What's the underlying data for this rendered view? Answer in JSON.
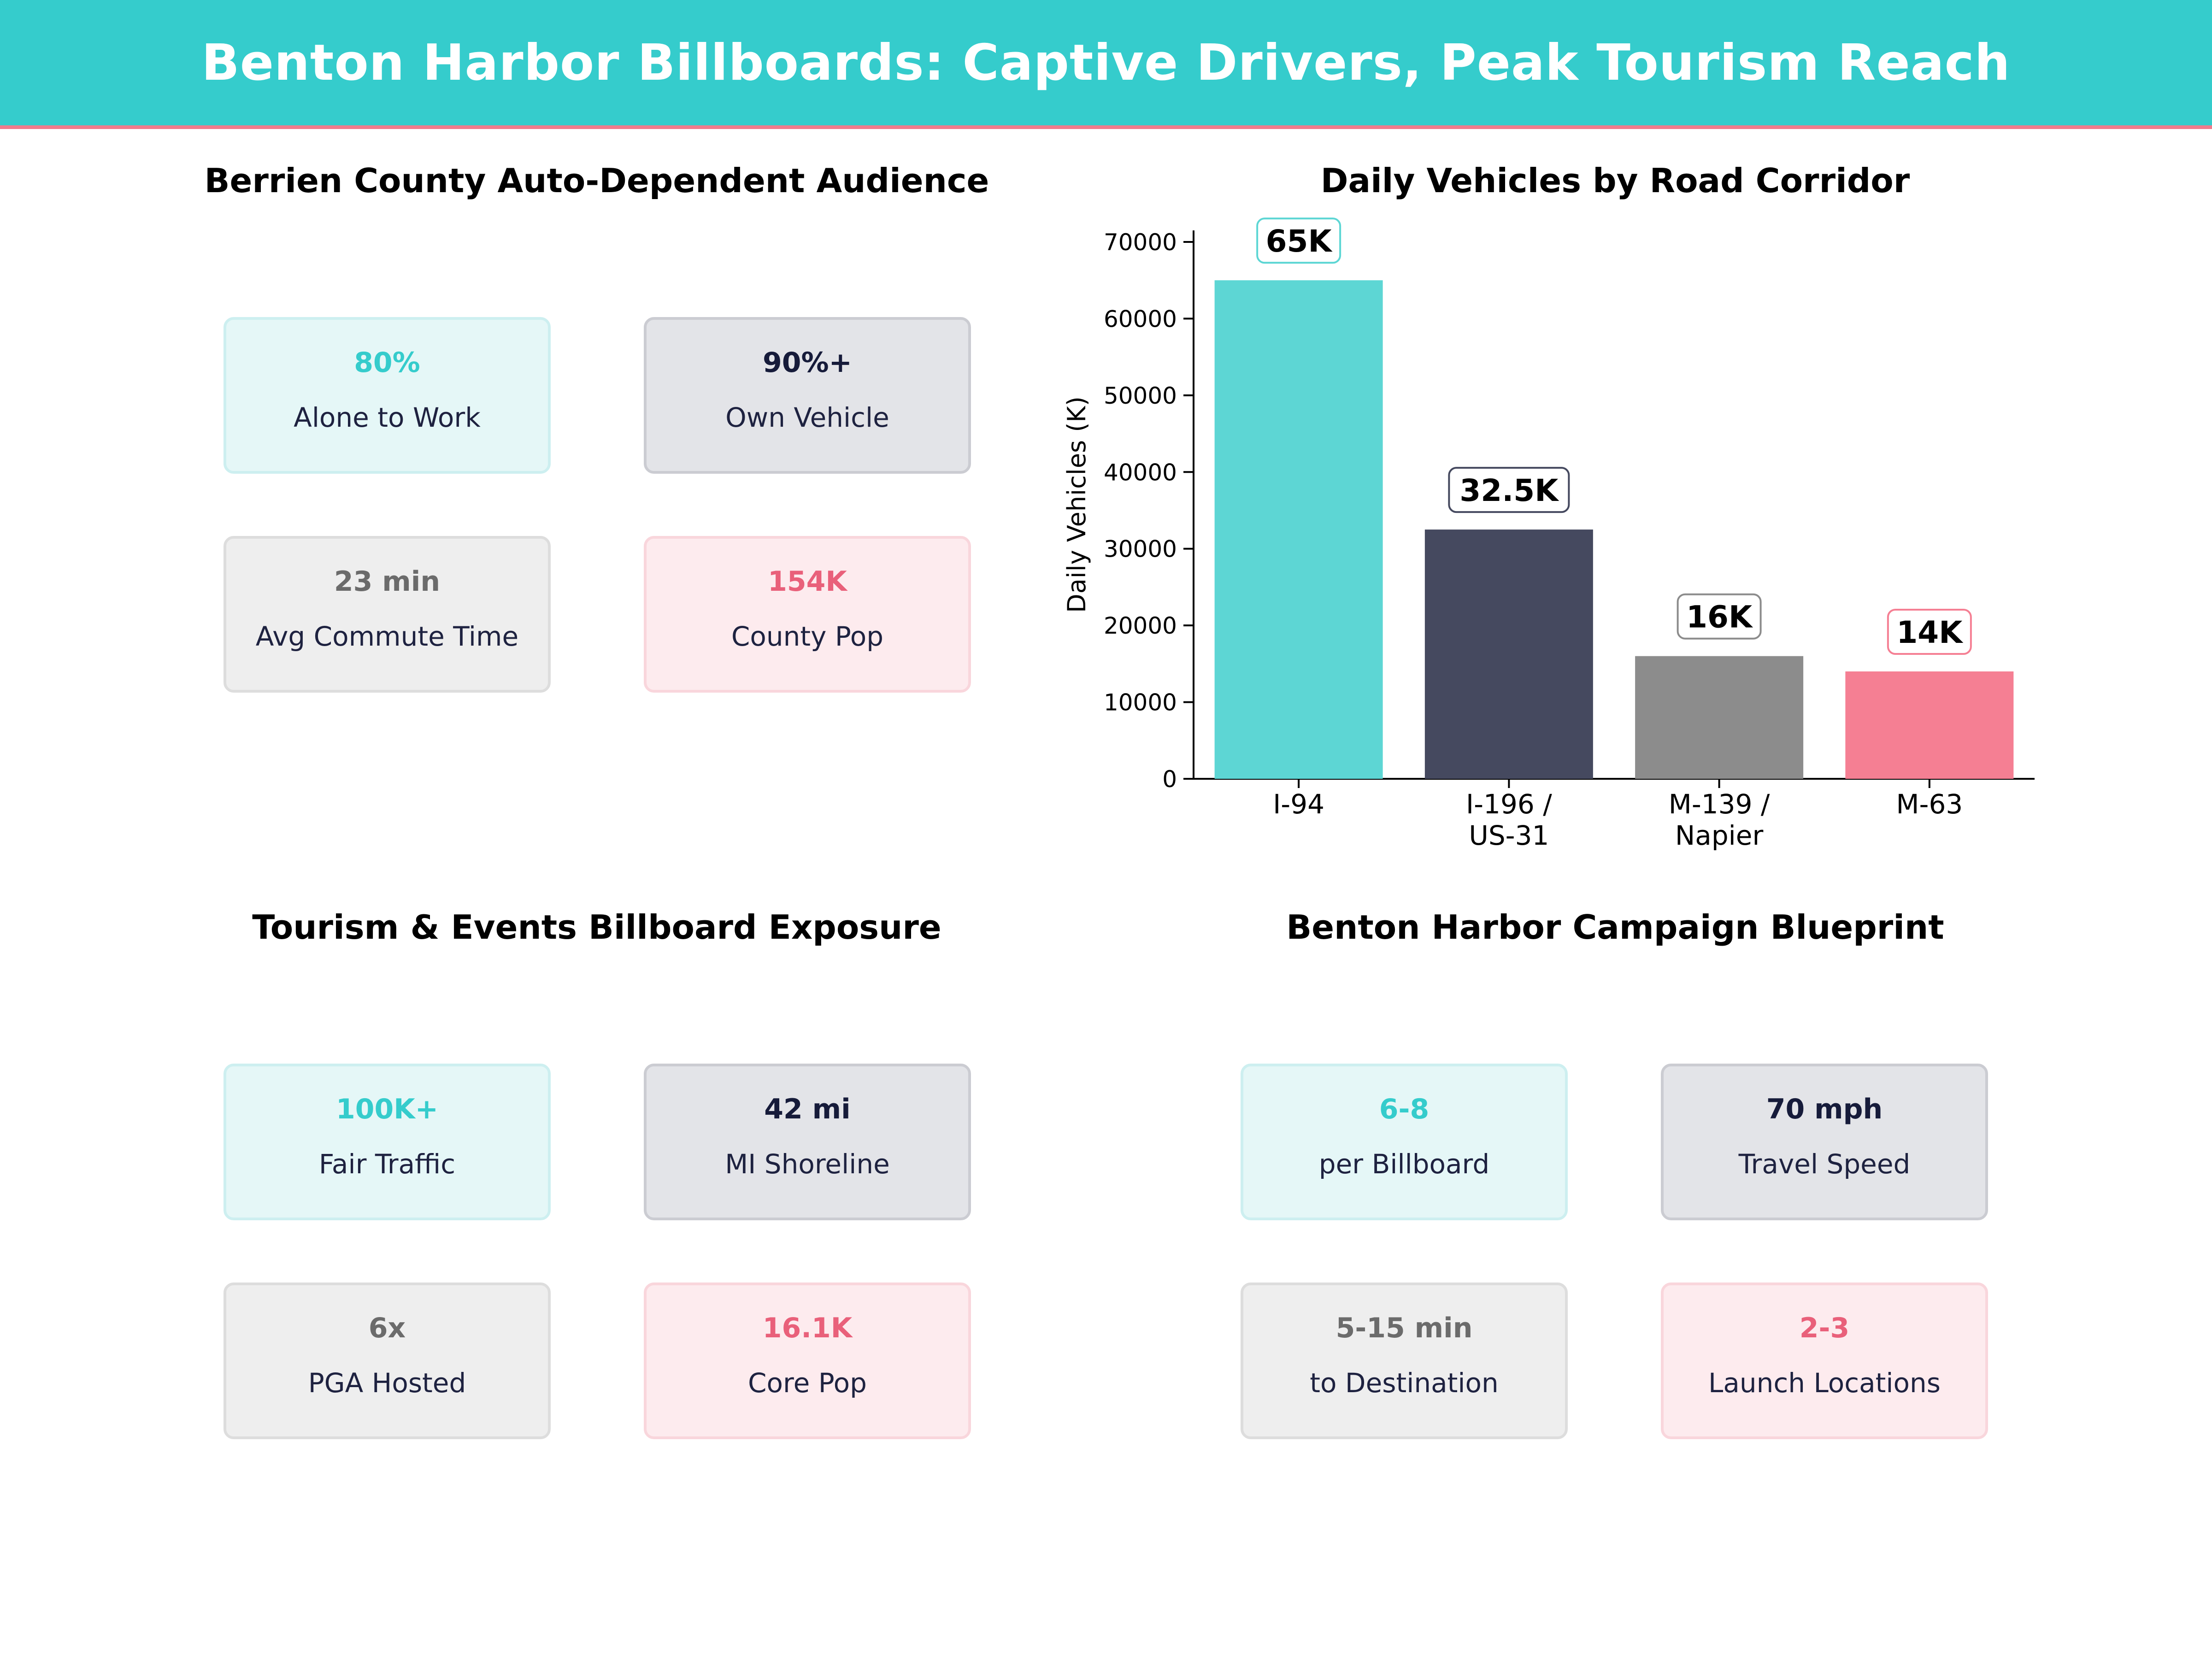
{
  "header": {
    "title": "Benton Harbor Billboards: Captive Drivers, Peak Tourism Reach"
  },
  "panels": {
    "audience": {
      "title": "Berrien County Auto-Dependent Audience",
      "cards": [
        {
          "value": "80%",
          "label": "Alone to Work"
        },
        {
          "value": "90%+",
          "label": "Own Vehicle"
        },
        {
          "value": "23 min",
          "label": "Avg Commute Time"
        },
        {
          "value": "154K",
          "label": "County Pop"
        }
      ]
    },
    "traffic": {
      "title": "Daily Vehicles by Road Corridor"
    },
    "tourism": {
      "title": "Tourism & Events Billboard Exposure",
      "cards": [
        {
          "value": "100K+",
          "label": "Fair Traffic"
        },
        {
          "value": "42 mi",
          "label": "MI Shoreline"
        },
        {
          "value": "6x",
          "label": "PGA Hosted"
        },
        {
          "value": "16.1K",
          "label": "Core Pop"
        }
      ]
    },
    "blueprint": {
      "title": "Benton Harbor Campaign Blueprint",
      "cards": [
        {
          "value": "6-8",
          "label": "per Billboard"
        },
        {
          "value": "70 mph",
          "label": "Travel Speed"
        },
        {
          "value": "5-15 min",
          "label": "to Destination"
        },
        {
          "value": "2-3",
          "label": "Launch Locations"
        }
      ]
    }
  },
  "colors": {
    "teal": "#5dd6d4",
    "navy": "#45495f",
    "gray": "#8c8c8c",
    "pink": "#f57f93"
  },
  "chart_data": {
    "type": "bar",
    "categories": [
      [
        "I-94"
      ],
      [
        "I-196 /",
        "US-31"
      ],
      [
        "M-139 /",
        "Napier"
      ],
      [
        "M-63"
      ]
    ],
    "values": [
      65000,
      32500,
      16000,
      14000
    ],
    "data_labels": [
      "65K",
      "32.5K",
      "16K",
      "14K"
    ],
    "bar_colors": [
      "#5dd6d4",
      "#45495f",
      "#8c8c8c",
      "#f57f93"
    ],
    "label_border_colors": [
      "#5dd6d4",
      "#45495f",
      "#8c8c8c",
      "#f57f93"
    ],
    "ylabel": "Daily Vehicles (K)",
    "xlabel": "",
    "ylim": [
      0,
      71500
    ],
    "yticks": [
      0,
      10000,
      20000,
      30000,
      40000,
      50000,
      60000,
      70000
    ],
    "grid": false
  }
}
